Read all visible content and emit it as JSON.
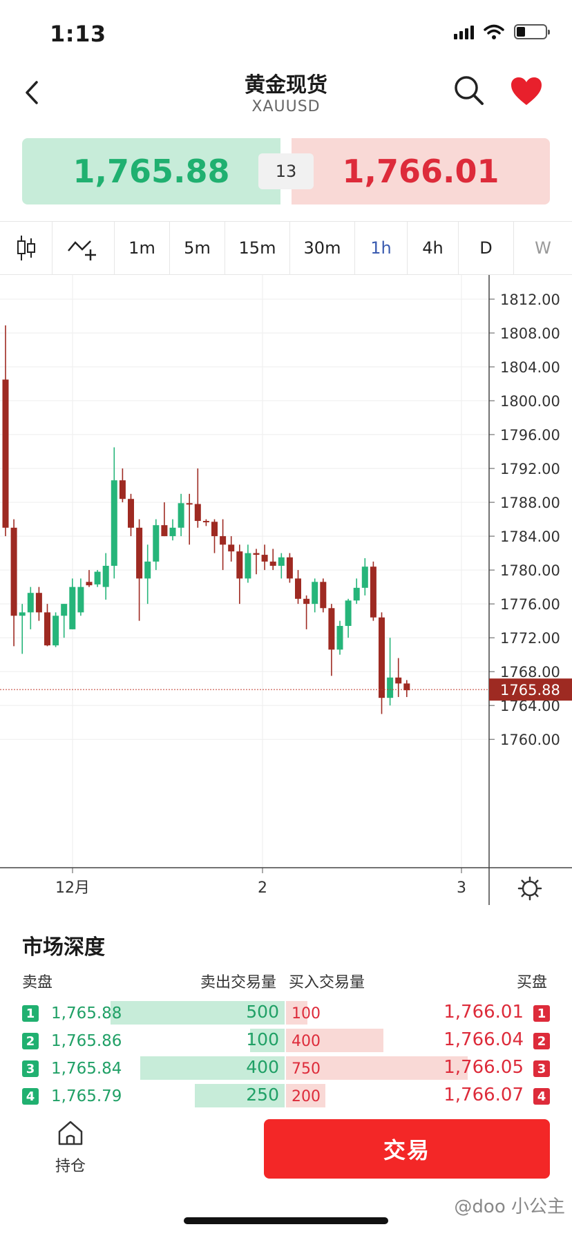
{
  "status": {
    "time": "1:13"
  },
  "nav": {
    "title": "黄金现货",
    "symbol": "XAUUSD"
  },
  "quote": {
    "bid": "1,765.88",
    "ask": "1,766.01",
    "spread": "13"
  },
  "toolbar": {
    "timeframes": [
      "1m",
      "5m",
      "15m",
      "30m",
      "1h",
      "4h",
      "D",
      "W"
    ],
    "active": "1h"
  },
  "chart_data": {
    "type": "candlestick",
    "current_price": 1765.88,
    "current_price_label": "1765.88",
    "ylim": [
      1758,
      1814
    ],
    "y_ticks": [
      "1812.00",
      "1808.00",
      "1804.00",
      "1800.00",
      "1796.00",
      "1792.00",
      "1788.00",
      "1784.00",
      "1780.00",
      "1776.00",
      "1772.00",
      "1768.00",
      "1764.00",
      "1760.00"
    ],
    "x_labels": [
      "12月",
      "2",
      "3"
    ],
    "up_color": "#26b57a",
    "down_color": "#9e2a22",
    "candles": [
      [
        1802.5,
        1808.9,
        1784.0,
        1785.0
      ],
      [
        1785.0,
        1786.0,
        1771.0,
        1774.6
      ],
      [
        1774.6,
        1776.0,
        1770.1,
        1775.0
      ],
      [
        1775.0,
        1778.0,
        1773.0,
        1777.3
      ],
      [
        1777.3,
        1778.0,
        1774.0,
        1775.0
      ],
      [
        1775.0,
        1776.0,
        1771.0,
        1771.1
      ],
      [
        1771.1,
        1775.0,
        1770.9,
        1774.6
      ],
      [
        1774.6,
        1776.0,
        1772.0,
        1776.0
      ],
      [
        1773.0,
        1779.0,
        1773.0,
        1778.0
      ],
      [
        1775.0,
        1779.0,
        1774.6,
        1778.0
      ],
      [
        1778.6,
        1780.0,
        1778.0,
        1778.2
      ],
      [
        1778.3,
        1780.0,
        1778.0,
        1779.8
      ],
      [
        1778.0,
        1782.0,
        1776.5,
        1780.5
      ],
      [
        1780.5,
        1794.5,
        1779.0,
        1790.6
      ],
      [
        1790.6,
        1792.0,
        1788.0,
        1788.4
      ],
      [
        1788.4,
        1789.0,
        1784.0,
        1785.0
      ],
      [
        1785.0,
        1786.0,
        1774.0,
        1779.0
      ],
      [
        1779.0,
        1783.0,
        1776.0,
        1781.0
      ],
      [
        1781.0,
        1786.0,
        1780.0,
        1785.3
      ],
      [
        1785.3,
        1788.0,
        1784.0,
        1784.0
      ],
      [
        1784.0,
        1786.0,
        1783.5,
        1785.0
      ],
      [
        1785.0,
        1789.0,
        1784.0,
        1787.9
      ],
      [
        1787.9,
        1789.0,
        1783.0,
        1787.8
      ],
      [
        1787.8,
        1792.0,
        1785.0,
        1785.8
      ],
      [
        1785.8,
        1786.0,
        1785.2,
        1785.7
      ],
      [
        1785.7,
        1786.0,
        1782.0,
        1784.0
      ],
      [
        1784.0,
        1786.0,
        1780.0,
        1783.0
      ],
      [
        1783.0,
        1784.0,
        1781.0,
        1782.2
      ],
      [
        1782.2,
        1783.0,
        1776.0,
        1779.0
      ],
      [
        1779.0,
        1783.0,
        1778.5,
        1782.0
      ],
      [
        1782.0,
        1782.5,
        1779.5,
        1781.8
      ],
      [
        1781.8,
        1783.0,
        1780.0,
        1781.0
      ],
      [
        1781.0,
        1782.5,
        1780.0,
        1780.5
      ],
      [
        1780.5,
        1782.0,
        1779.0,
        1781.5
      ],
      [
        1781.5,
        1782.0,
        1778.5,
        1779.0
      ],
      [
        1779.0,
        1780.0,
        1776.0,
        1776.6
      ],
      [
        1776.6,
        1777.0,
        1773.0,
        1776.0
      ],
      [
        1776.0,
        1779.0,
        1775.0,
        1778.6
      ],
      [
        1778.6,
        1779.0,
        1775.0,
        1775.5
      ],
      [
        1775.5,
        1776.0,
        1767.5,
        1770.6
      ],
      [
        1770.6,
        1774.0,
        1770.0,
        1773.4
      ],
      [
        1773.4,
        1776.6,
        1772.0,
        1776.4
      ],
      [
        1776.4,
        1779.0,
        1776.0,
        1777.9
      ],
      [
        1777.9,
        1781.4,
        1777.0,
        1780.4
      ],
      [
        1780.4,
        1781.0,
        1774.0,
        1774.4
      ],
      [
        1774.4,
        1775.0,
        1763.0,
        1764.9
      ],
      [
        1764.9,
        1772.0,
        1764.0,
        1767.3
      ],
      [
        1767.3,
        1769.6,
        1765.0,
        1766.6
      ],
      [
        1766.6,
        1767.0,
        1765.0,
        1765.8
      ]
    ]
  },
  "depth": {
    "title": "市场深度",
    "headers": {
      "bid": "卖盘",
      "sell_vol": "卖出交易量",
      "buy_vol": "买入交易量",
      "ask": "买盘"
    },
    "rows": [
      {
        "lvl": "1",
        "bid": "1,765.88",
        "bid_vol": "500",
        "ask_vol": "100",
        "ask": "1,766.01",
        "bid_frac": 0.7,
        "ask_frac": 0.05
      },
      {
        "lvl": "2",
        "bid": "1,765.86",
        "bid_vol": "100",
        "ask_vol": "400",
        "ask": "1,766.04",
        "bid_frac": 0.14,
        "ask_frac": 0.43
      },
      {
        "lvl": "3",
        "bid": "1,765.84",
        "bid_vol": "400",
        "ask_vol": "750",
        "ask": "1,766.05",
        "bid_frac": 0.58,
        "ask_frac": 0.85
      },
      {
        "lvl": "4",
        "bid": "1,765.79",
        "bid_vol": "250",
        "ask_vol": "200",
        "ask": "1,766.07",
        "bid_frac": 0.36,
        "ask_frac": 0.14
      }
    ]
  },
  "bottom": {
    "hold_label": "持仓",
    "trade_label": "交易"
  },
  "watermark": "@doo 小公主"
}
